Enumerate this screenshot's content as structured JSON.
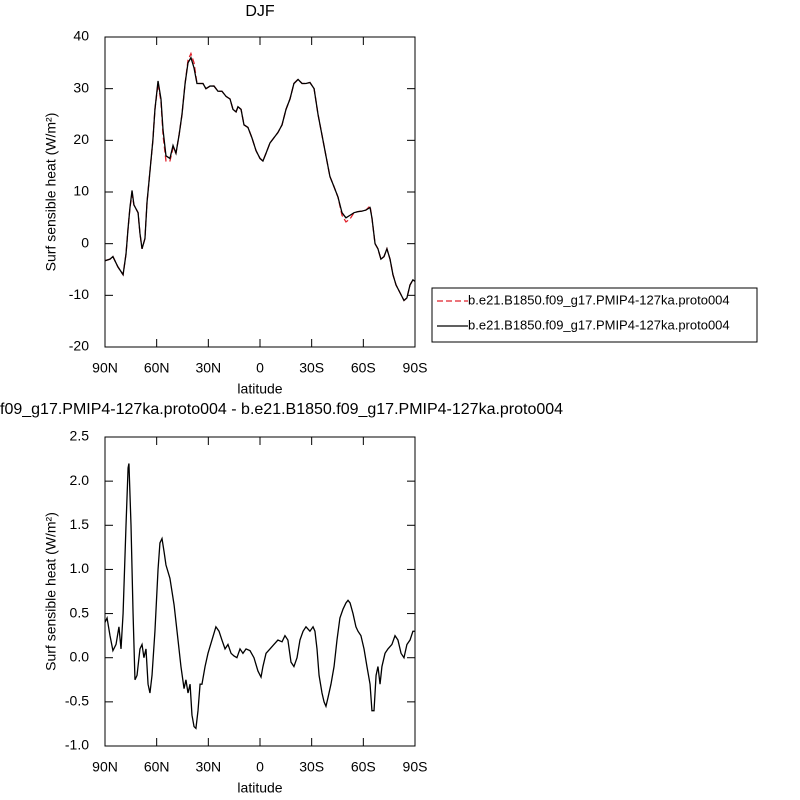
{
  "chart_data": [
    {
      "type": "line",
      "title": "DJF",
      "x_label": "latitude",
      "y_label": "Surf sensible heat (W/m²)",
      "x": [
        90,
        87.1,
        85.4,
        82.5,
        79.5,
        77.8,
        76.6,
        75.5,
        74.3,
        73.2,
        70.8,
        69.7,
        68.5,
        66.8,
        65.6,
        63.9,
        62.2,
        61,
        59.2,
        57.5,
        56.3,
        54.6,
        52.3,
        50.5,
        48.8,
        47,
        45.3,
        43.5,
        41.8,
        40.1,
        38.3,
        36.6,
        34.8,
        33.1,
        31.4,
        29,
        26.7,
        24.4,
        22.1,
        19.7,
        17.4,
        15.7,
        13.9,
        12.8,
        11,
        9.3,
        7,
        4.7,
        2.3,
        0,
        -1.7,
        -3.5,
        -5.8,
        -8.1,
        -10.4,
        -12.8,
        -15.1,
        -17.4,
        -19.7,
        -22.1,
        -24.4,
        -26.7,
        -29,
        -31.4,
        -33.7,
        -36,
        -38.3,
        -40.6,
        -43,
        -45.3,
        -47.6,
        -49.9,
        -52.3,
        -54.6,
        -56.9,
        -59.2,
        -61.5,
        -63.9,
        -65,
        -66.8,
        -68.5,
        -70.2,
        -72,
        -73.7,
        -75.5,
        -77.2,
        -79,
        -81.3,
        -83.6,
        -85.3,
        -87.1,
        -88.8,
        -90
      ],
      "series": [
        {
          "name": "b.e21.B1850.f09_g17.PMIP4-127ka.proto004",
          "color": "#e0202a",
          "dash": true,
          "values": [
            -3.3,
            -3,
            -2.5,
            -4.5,
            -6,
            -2,
            3,
            7,
            9.5,
            7.5,
            6,
            2,
            -1,
            1,
            8,
            14,
            20,
            26,
            31,
            27.5,
            21,
            16,
            16,
            18.5,
            17.5,
            21,
            25,
            31,
            35.5,
            36.8,
            35,
            31,
            31,
            31,
            30,
            30.5,
            30.5,
            29.5,
            29.5,
            28.5,
            28,
            26,
            25.5,
            26.5,
            26,
            23,
            22.5,
            20.5,
            18,
            16.5,
            16,
            17.5,
            19.5,
            20.5,
            21.5,
            23,
            26,
            28,
            31,
            31.8,
            31,
            31,
            31.2,
            30,
            25,
            21,
            17,
            13,
            11,
            9,
            5.5,
            4.2,
            4.8,
            6,
            6.2,
            6.3,
            6.5,
            7.3,
            5,
            0,
            -1,
            -3,
            -2.5,
            -1,
            -3,
            -6,
            -8,
            -9.5,
            -11,
            -10.5,
            -8,
            -7,
            -7.3
          ]
        },
        {
          "name": "b.e21.B1850.f09_g17.PMIP4-127ka.proto004",
          "color": "#000000",
          "dash": false,
          "values": [
            -3.3,
            -3,
            -2.5,
            -4.5,
            -6,
            -2,
            3,
            7,
            10.3,
            7.5,
            6,
            2,
            -1,
            1,
            8,
            14,
            20,
            26,
            31.5,
            28,
            22,
            17,
            16.5,
            19,
            17.5,
            21,
            25,
            31,
            35,
            36,
            34,
            31,
            31,
            31,
            30,
            30.5,
            30.5,
            29.5,
            29.5,
            28.5,
            28,
            26,
            25.5,
            26.5,
            26,
            23,
            22.5,
            20.5,
            18,
            16.5,
            16,
            17.5,
            19.5,
            20.5,
            21.5,
            23,
            26,
            28,
            31,
            31.8,
            31,
            31,
            31.2,
            30,
            25,
            21,
            17,
            13,
            11,
            9,
            6,
            5,
            5.5,
            6,
            6.2,
            6.3,
            6.5,
            7,
            5,
            0,
            -1,
            -3,
            -2.5,
            -1,
            -3,
            -6,
            -8,
            -9.5,
            -11,
            -10.5,
            -8,
            -7,
            -7.3
          ]
        }
      ],
      "xlim": [
        90,
        -90
      ],
      "xticks": [
        {
          "value": 90,
          "label": "90N"
        },
        {
          "value": 60,
          "label": "60N"
        },
        {
          "value": 30,
          "label": "30N"
        },
        0,
        {
          "value": -30,
          "label": "30S"
        },
        {
          "value": -60,
          "label": "60S"
        },
        {
          "value": -90,
          "label": "90S"
        }
      ],
      "ylim": [
        -20,
        40
      ],
      "yticks": [
        -20,
        -10,
        0,
        10,
        20,
        30,
        40
      ],
      "legend": "outside-right"
    },
    {
      "type": "line",
      "title": "f09_g17.PMIP4-127ka.proto004 - b.e21.B1850.f09_g17.PMIP4-127ka.proto004",
      "x_label": "latitude",
      "y_label": "Surf sensible heat (W/m²)",
      "x": [
        90,
        88.8,
        87.1,
        85.4,
        83.6,
        81.9,
        80.7,
        79.5,
        77.8,
        76.6,
        76.1,
        74.9,
        73.7,
        72.6,
        71.4,
        69.7,
        68.5,
        67.4,
        66.2,
        65,
        63.9,
        62.7,
        61,
        59.2,
        58.1,
        56.9,
        55.7,
        54.6,
        52.3,
        49.9,
        47.6,
        45.9,
        44.1,
        43,
        41.8,
        40.6,
        39.5,
        38.3,
        37.2,
        36,
        34.8,
        33.7,
        31.9,
        30.2,
        27.9,
        25.6,
        23.8,
        22.1,
        20.3,
        18.6,
        16.8,
        15.1,
        13.4,
        11.6,
        9.9,
        8.1,
        5.8,
        3.5,
        1.2,
        -0.6,
        -1.7,
        -3.5,
        -5.8,
        -8.1,
        -10.4,
        -12.8,
        -14.5,
        -16.2,
        -18,
        -19.7,
        -21.5,
        -23.2,
        -25,
        -26.7,
        -29,
        -30.8,
        -31.9,
        -33.1,
        -34.3,
        -36,
        -37.2,
        -38.3,
        -39.5,
        -41.2,
        -43,
        -44.7,
        -46.4,
        -48.2,
        -49.9,
        -51.1,
        -52.3,
        -54,
        -55.7,
        -56.9,
        -58.6,
        -60.4,
        -62.1,
        -63.9,
        -65,
        -66.2,
        -67.4,
        -68.5,
        -69.7,
        -70.8,
        -72.6,
        -74.3,
        -76.6,
        -78.4,
        -80.1,
        -81.9,
        -83.6,
        -85.3,
        -87.1,
        -88.8,
        -90
      ],
      "series": [
        {
          "color": "#000000",
          "dash": false,
          "values": [
            0.4,
            0.45,
            0.25,
            0.08,
            0.15,
            0.35,
            0.1,
            0.5,
            1.5,
            2.15,
            2.2,
            1.5,
            0.5,
            -0.25,
            -0.2,
            0.1,
            0.15,
            0,
            0.1,
            -0.3,
            -0.4,
            -0.2,
            0.3,
            1,
            1.3,
            1.35,
            1.2,
            1.05,
            0.9,
            0.6,
            0.2,
            -0.1,
            -0.35,
            -0.25,
            -0.4,
            -0.3,
            -0.65,
            -0.78,
            -0.8,
            -0.6,
            -0.3,
            -0.3,
            -0.1,
            0.05,
            0.2,
            0.35,
            0.3,
            0.2,
            0.1,
            0.15,
            0.05,
            0.02,
            0,
            0.1,
            0.05,
            0.1,
            0.08,
            0,
            -0.15,
            -0.22,
            -0.1,
            0.05,
            0.1,
            0.15,
            0.2,
            0.18,
            0.25,
            0.2,
            -0.05,
            -0.1,
            0,
            0.2,
            0.3,
            0.35,
            0.3,
            0.35,
            0.3,
            0.1,
            -0.2,
            -0.4,
            -0.5,
            -0.55,
            -0.45,
            -0.3,
            -0.1,
            0.2,
            0.45,
            0.55,
            0.62,
            0.65,
            0.62,
            0.5,
            0.35,
            0.3,
            0.25,
            0.1,
            -0.1,
            -0.3,
            -0.6,
            -0.6,
            -0.2,
            -0.1,
            -0.3,
            -0.1,
            0.05,
            0.1,
            0.15,
            0.25,
            0.2,
            0.05,
            0,
            0.15,
            0.2,
            0.3,
            0.3
          ]
        }
      ],
      "xlim": [
        90,
        -90
      ],
      "xticks": [
        {
          "value": 90,
          "label": "90N"
        },
        {
          "value": 60,
          "label": "60N"
        },
        {
          "value": 30,
          "label": "30N"
        },
        0,
        {
          "value": -30,
          "label": "30S"
        },
        {
          "value": -60,
          "label": "60S"
        },
        {
          "value": -90,
          "label": "90S"
        }
      ],
      "ylim": [
        -1,
        2.5
      ],
      "yticks": [
        {
          "value": -1,
          "label": "-1.0"
        },
        {
          "value": -0.5,
          "label": "-0.5"
        },
        {
          "value": 0,
          "label": "0.0"
        },
        {
          "value": 0.5,
          "label": "0.5"
        },
        {
          "value": 1,
          "label": "1.0"
        },
        {
          "value": 1.5,
          "label": "1.5"
        },
        {
          "value": 2,
          "label": "2.0"
        },
        {
          "value": 2.5,
          "label": "2.5"
        }
      ]
    }
  ]
}
